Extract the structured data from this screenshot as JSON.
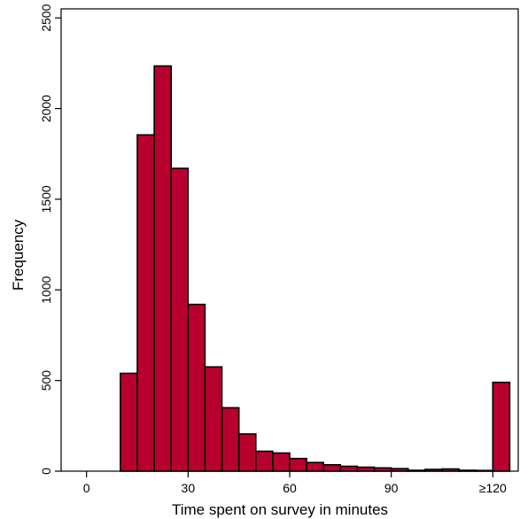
{
  "chart_data": {
    "type": "bar",
    "xlabel": "Time spent on survey in minutes",
    "ylabel": "Frequency",
    "bar_color": "#B8002E",
    "edge_color": "#000000",
    "grid": false,
    "xlim": [
      -7.5,
      127.5
    ],
    "ylim": [
      0,
      2550
    ],
    "xticks": [
      {
        "value": 0,
        "label": "0"
      },
      {
        "value": 30,
        "label": "30"
      },
      {
        "value": 60,
        "label": "60"
      },
      {
        "value": 90,
        "label": "90"
      },
      {
        "value": 120,
        "label": "≥120"
      }
    ],
    "yticks": [
      {
        "value": 0,
        "label": "0"
      },
      {
        "value": 500,
        "label": "500"
      },
      {
        "value": 1000,
        "label": "1000"
      },
      {
        "value": 1500,
        "label": "1500"
      },
      {
        "value": 2000,
        "label": "2000"
      },
      {
        "value": 2500,
        "label": "2500"
      }
    ],
    "bin_width": 5,
    "bins": [
      {
        "start": 10,
        "value": 540
      },
      {
        "start": 15,
        "value": 1855
      },
      {
        "start": 20,
        "value": 2235
      },
      {
        "start": 25,
        "value": 1670
      },
      {
        "start": 30,
        "value": 920
      },
      {
        "start": 35,
        "value": 575
      },
      {
        "start": 40,
        "value": 350
      },
      {
        "start": 45,
        "value": 205
      },
      {
        "start": 50,
        "value": 110
      },
      {
        "start": 55,
        "value": 100
      },
      {
        "start": 60,
        "value": 70
      },
      {
        "start": 65,
        "value": 48
      },
      {
        "start": 70,
        "value": 35
      },
      {
        "start": 75,
        "value": 27
      },
      {
        "start": 80,
        "value": 22
      },
      {
        "start": 85,
        "value": 18
      },
      {
        "start": 90,
        "value": 14
      },
      {
        "start": 95,
        "value": 5
      },
      {
        "start": 100,
        "value": 10
      },
      {
        "start": 105,
        "value": 12
      },
      {
        "start": 110,
        "value": 5
      },
      {
        "start": 115,
        "value": 4
      },
      {
        "start": 120,
        "value": 490
      }
    ]
  }
}
